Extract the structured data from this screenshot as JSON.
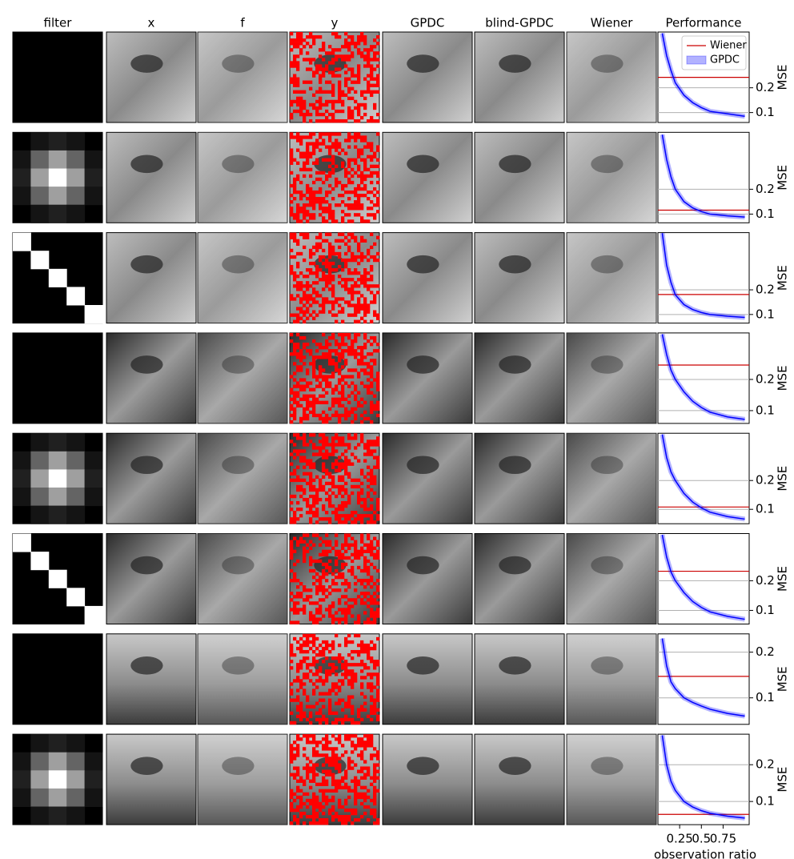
{
  "column_titles": [
    "filter",
    "x",
    "f",
    "y",
    "GPDC",
    "blind-GPDC",
    "Wiener"
  ],
  "chart_data": [
    {
      "type": "line",
      "title": "Performance",
      "ylabel": "MSE",
      "legend": "upper right",
      "grid": true,
      "x": [
        0.05,
        0.1,
        0.15,
        0.2,
        0.3,
        0.4,
        0.5,
        0.6,
        0.8,
        1.0
      ],
      "xlim": [
        0,
        1.05
      ],
      "ylim": [
        0.06,
        0.425
      ],
      "yticks": [
        0.1,
        0.2
      ],
      "reference": {
        "name": "Wiener",
        "color": "#cc0000",
        "value": 0.242
      },
      "series": [
        {
          "name": "GPDC",
          "color": "#0000ff",
          "values": [
            0.42,
            0.33,
            0.27,
            0.22,
            0.17,
            0.14,
            0.12,
            0.105,
            0.095,
            0.085
          ]
        }
      ]
    },
    {
      "type": "line",
      "ylabel": "MSE",
      "grid": true,
      "x": [
        0.05,
        0.1,
        0.15,
        0.2,
        0.3,
        0.4,
        0.5,
        0.6,
        0.8,
        1.0
      ],
      "xlim": [
        0,
        1.05
      ],
      "ylim": [
        0.065,
        0.429
      ],
      "yticks": [
        0.1,
        0.2
      ],
      "reference": {
        "color": "#cc0000",
        "value": 0.116
      },
      "series": [
        {
          "color": "#0000ff",
          "values": [
            0.42,
            0.32,
            0.25,
            0.2,
            0.15,
            0.125,
            0.11,
            0.1,
            0.093,
            0.088
          ]
        }
      ]
    },
    {
      "type": "line",
      "ylabel": "MSE",
      "grid": true,
      "x": [
        0.05,
        0.1,
        0.15,
        0.2,
        0.3,
        0.4,
        0.5,
        0.6,
        0.8,
        1.0
      ],
      "xlim": [
        0,
        1.05
      ],
      "ylim": [
        0.065,
        0.432
      ],
      "yticks": [
        0.1,
        0.2
      ],
      "reference": {
        "color": "#cc0000",
        "value": 0.181
      },
      "series": [
        {
          "color": "#0000ff",
          "values": [
            0.43,
            0.3,
            0.23,
            0.18,
            0.14,
            0.12,
            0.108,
            0.1,
            0.093,
            0.088
          ]
        }
      ]
    },
    {
      "type": "line",
      "ylabel": "MSE",
      "grid": true,
      "x": [
        0.05,
        0.1,
        0.15,
        0.2,
        0.3,
        0.4,
        0.5,
        0.6,
        0.8,
        1.0
      ],
      "xlim": [
        0,
        1.05
      ],
      "ylim": [
        0.059,
        0.349
      ],
      "yticks": [
        0.1,
        0.2
      ],
      "reference": {
        "color": "#cc0000",
        "value": 0.246
      },
      "series": [
        {
          "color": "#0000ff",
          "values": [
            0.345,
            0.28,
            0.23,
            0.2,
            0.16,
            0.13,
            0.11,
            0.095,
            0.08,
            0.072
          ]
        }
      ]
    },
    {
      "type": "line",
      "ylabel": "MSE",
      "grid": true,
      "x": [
        0.05,
        0.1,
        0.15,
        0.2,
        0.3,
        0.4,
        0.5,
        0.6,
        0.8,
        1.0
      ],
      "xlim": [
        0,
        1.05
      ],
      "ylim": [
        0.05,
        0.364
      ],
      "yticks": [
        0.1,
        0.2
      ],
      "reference": {
        "color": "#cc0000",
        "value": 0.108
      },
      "series": [
        {
          "color": "#0000ff",
          "values": [
            0.36,
            0.28,
            0.23,
            0.2,
            0.155,
            0.125,
            0.105,
            0.09,
            0.075,
            0.066
          ]
        }
      ]
    },
    {
      "type": "line",
      "ylabel": "MSE",
      "grid": true,
      "x": [
        0.05,
        0.1,
        0.15,
        0.2,
        0.3,
        0.4,
        0.5,
        0.6,
        0.8,
        1.0
      ],
      "xlim": [
        0,
        1.05
      ],
      "ylim": [
        0.054,
        0.359
      ],
      "yticks": [
        0.1,
        0.2
      ],
      "reference": {
        "color": "#cc0000",
        "value": 0.232
      },
      "series": [
        {
          "color": "#0000ff",
          "values": [
            0.355,
            0.28,
            0.23,
            0.2,
            0.16,
            0.13,
            0.11,
            0.095,
            0.08,
            0.07
          ]
        }
      ]
    },
    {
      "type": "line",
      "ylabel": "MSE",
      "grid": true,
      "x": [
        0.05,
        0.1,
        0.15,
        0.2,
        0.3,
        0.4,
        0.5,
        0.6,
        0.8,
        1.0
      ],
      "xlim": [
        0,
        1.05
      ],
      "ylim": [
        0.042,
        0.24
      ],
      "yticks": [
        0.1,
        0.2
      ],
      "reference": {
        "color": "#cc0000",
        "value": 0.147
      },
      "series": [
        {
          "color": "#0000ff",
          "values": [
            0.23,
            0.17,
            0.135,
            0.12,
            0.1,
            0.09,
            0.082,
            0.075,
            0.066,
            0.06
          ]
        }
      ]
    },
    {
      "type": "line",
      "ylabel": "MSE",
      "xlabel": "observation ratio",
      "grid": true,
      "x": [
        0.05,
        0.1,
        0.15,
        0.2,
        0.3,
        0.4,
        0.5,
        0.6,
        0.8,
        1.0
      ],
      "xlim": [
        0,
        1.05
      ],
      "xticks": [
        0.25,
        0.5,
        0.75
      ],
      "ylim": [
        0.037,
        0.283
      ],
      "yticks": [
        0.1,
        0.2
      ],
      "reference": {
        "color": "#cc0000",
        "value": 0.065
      },
      "series": [
        {
          "color": "#0000ff",
          "values": [
            0.28,
            0.2,
            0.155,
            0.13,
            0.1,
            0.085,
            0.075,
            0.068,
            0.06,
            0.055
          ]
        }
      ]
    }
  ]
}
